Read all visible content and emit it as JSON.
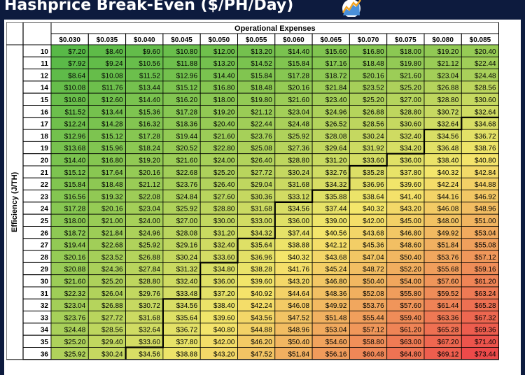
{
  "title": "Hashprice Break-Even ($/PH/Day)",
  "logo_icon": "chart-trend-icon",
  "colors": {
    "background": "#0d1b3e",
    "low": "#58b947",
    "mid": "#f4e66b",
    "high": "#ec4a4a",
    "line": "#000000",
    "header_fill": "#ffffff"
  },
  "chart_data": {
    "type": "table",
    "title": "Hashprice Break-Even ($/PH/Day)",
    "column_group_label": "Operational Expenses",
    "row_group_label": "Efficiency (J/TH)",
    "columns": [
      "$0.030",
      "$0.035",
      "$0.040",
      "$0.045",
      "$0.050",
      "$0.055",
      "$0.060",
      "$0.065",
      "$0.070",
      "$0.075",
      "$0.080",
      "$0.085"
    ],
    "rows": [
      10,
      11,
      12,
      14,
      15,
      16,
      17,
      18,
      19,
      20,
      21,
      22,
      23,
      24,
      25,
      26,
      27,
      28,
      29,
      30,
      31,
      32,
      33,
      34,
      35,
      36
    ],
    "values": [
      [
        "$7.20",
        "$8.40",
        "$9.60",
        "$10.80",
        "$12.00",
        "$13.20",
        "$14.40",
        "$15.60",
        "$16.80",
        "$18.00",
        "$19.20",
        "$20.40"
      ],
      [
        "$7.92",
        "$9.24",
        "$10.56",
        "$11.88",
        "$13.20",
        "$14.52",
        "$15.84",
        "$17.16",
        "$18.48",
        "$19.80",
        "$21.12",
        "$22.44"
      ],
      [
        "$8.64",
        "$10.08",
        "$11.52",
        "$12.96",
        "$14.40",
        "$15.84",
        "$17.28",
        "$18.72",
        "$20.16",
        "$21.60",
        "$23.04",
        "$24.48"
      ],
      [
        "$10.08",
        "$11.76",
        "$13.44",
        "$15.12",
        "$16.80",
        "$18.48",
        "$20.16",
        "$21.84",
        "$23.52",
        "$25.20",
        "$26.88",
        "$28.56"
      ],
      [
        "$10.80",
        "$12.60",
        "$14.40",
        "$16.20",
        "$18.00",
        "$19.80",
        "$21.60",
        "$23.40",
        "$25.20",
        "$27.00",
        "$28.80",
        "$30.60"
      ],
      [
        "$11.52",
        "$13.44",
        "$15.36",
        "$17.28",
        "$19.20",
        "$21.12",
        "$23.04",
        "$24.96",
        "$26.88",
        "$28.80",
        "$30.72",
        "$32.64"
      ],
      [
        "$12.24",
        "$14.28",
        "$16.32",
        "$18.36",
        "$20.40",
        "$22.44",
        "$24.48",
        "$26.52",
        "$28.56",
        "$30.60",
        "$32.64",
        "$34.68"
      ],
      [
        "$12.96",
        "$15.12",
        "$17.28",
        "$19.44",
        "$21.60",
        "$23.76",
        "$25.92",
        "$28.08",
        "$30.24",
        "$32.40",
        "$34.56",
        "$36.72"
      ],
      [
        "$13.68",
        "$15.96",
        "$18.24",
        "$20.52",
        "$22.80",
        "$25.08",
        "$27.36",
        "$29.64",
        "$31.92",
        "$34.20",
        "$36.48",
        "$38.76"
      ],
      [
        "$14.40",
        "$16.80",
        "$19.20",
        "$21.60",
        "$24.00",
        "$26.40",
        "$28.80",
        "$31.20",
        "$33.60",
        "$36.00",
        "$38.40",
        "$40.80"
      ],
      [
        "$15.12",
        "$17.64",
        "$20.16",
        "$22.68",
        "$25.20",
        "$27.72",
        "$30.24",
        "$32.76",
        "$35.28",
        "$37.80",
        "$40.32",
        "$42.84"
      ],
      [
        "$15.84",
        "$18.48",
        "$21.12",
        "$23.76",
        "$26.40",
        "$29.04",
        "$31.68",
        "$34.32",
        "$36.96",
        "$39.60",
        "$42.24",
        "$44.88"
      ],
      [
        "$16.56",
        "$19.32",
        "$22.08",
        "$24.84",
        "$27.60",
        "$30.36",
        "$33.12",
        "$35.88",
        "$38.64",
        "$41.40",
        "$44.16",
        "$46.92"
      ],
      [
        "$17.28",
        "$20.16",
        "$23.04",
        "$25.92",
        "$28.80",
        "$31.68",
        "$34.56",
        "$37.44",
        "$40.32",
        "$43.20",
        "$46.08",
        "$48.96"
      ],
      [
        "$18.00",
        "$21.00",
        "$24.00",
        "$27.00",
        "$30.00",
        "$33.00",
        "$36.00",
        "$39.00",
        "$42.00",
        "$45.00",
        "$48.00",
        "$51.00"
      ],
      [
        "$18.72",
        "$21.84",
        "$24.96",
        "$28.08",
        "$31.20",
        "$34.32",
        "$37.44",
        "$40.56",
        "$43.68",
        "$46.80",
        "$49.92",
        "$53.04"
      ],
      [
        "$19.44",
        "$22.68",
        "$25.92",
        "$29.16",
        "$32.40",
        "$35.64",
        "$38.88",
        "$42.12",
        "$45.36",
        "$48.60",
        "$51.84",
        "$55.08"
      ],
      [
        "$20.16",
        "$23.52",
        "$26.88",
        "$30.24",
        "$33.60",
        "$36.96",
        "$40.32",
        "$43.68",
        "$47.04",
        "$50.40",
        "$53.76",
        "$57.12"
      ],
      [
        "$20.88",
        "$24.36",
        "$27.84",
        "$31.32",
        "$34.80",
        "$38.28",
        "$41.76",
        "$45.24",
        "$48.72",
        "$52.20",
        "$55.68",
        "$59.16"
      ],
      [
        "$21.60",
        "$25.20",
        "$28.80",
        "$32.40",
        "$36.00",
        "$39.60",
        "$43.20",
        "$46.80",
        "$50.40",
        "$54.00",
        "$57.60",
        "$61.20"
      ],
      [
        "$22.32",
        "$26.04",
        "$29.76",
        "$33.48",
        "$37.20",
        "$40.92",
        "$44.64",
        "$48.36",
        "$52.08",
        "$55.80",
        "$59.52",
        "$63.24"
      ],
      [
        "$23.04",
        "$26.88",
        "$30.72",
        "$34.56",
        "$38.40",
        "$42.24",
        "$46.08",
        "$49.92",
        "$53.76",
        "$57.60",
        "$61.44",
        "$65.28"
      ],
      [
        "$23.76",
        "$27.72",
        "$31.68",
        "$35.64",
        "$39.60",
        "$43.56",
        "$47.52",
        "$51.48",
        "$55.44",
        "$59.40",
        "$63.36",
        "$67.32"
      ],
      [
        "$24.48",
        "$28.56",
        "$32.64",
        "$36.72",
        "$40.80",
        "$44.88",
        "$48.96",
        "$53.04",
        "$57.12",
        "$61.20",
        "$65.28",
        "$69.36"
      ],
      [
        "$25.20",
        "$29.40",
        "$33.60",
        "$37.80",
        "$42.00",
        "$46.20",
        "$50.40",
        "$54.60",
        "$58.80",
        "$63.00",
        "$67.20",
        "$71.40"
      ],
      [
        "$25.92",
        "$30.24",
        "$34.56",
        "$38.88",
        "$43.20",
        "$47.52",
        "$51.84",
        "$56.16",
        "$60.48",
        "$64.80",
        "$69.12",
        "$73.44"
      ]
    ],
    "threshold_value": 34.5,
    "color_scale": [
      "green",
      "yellow",
      "red"
    ]
  }
}
